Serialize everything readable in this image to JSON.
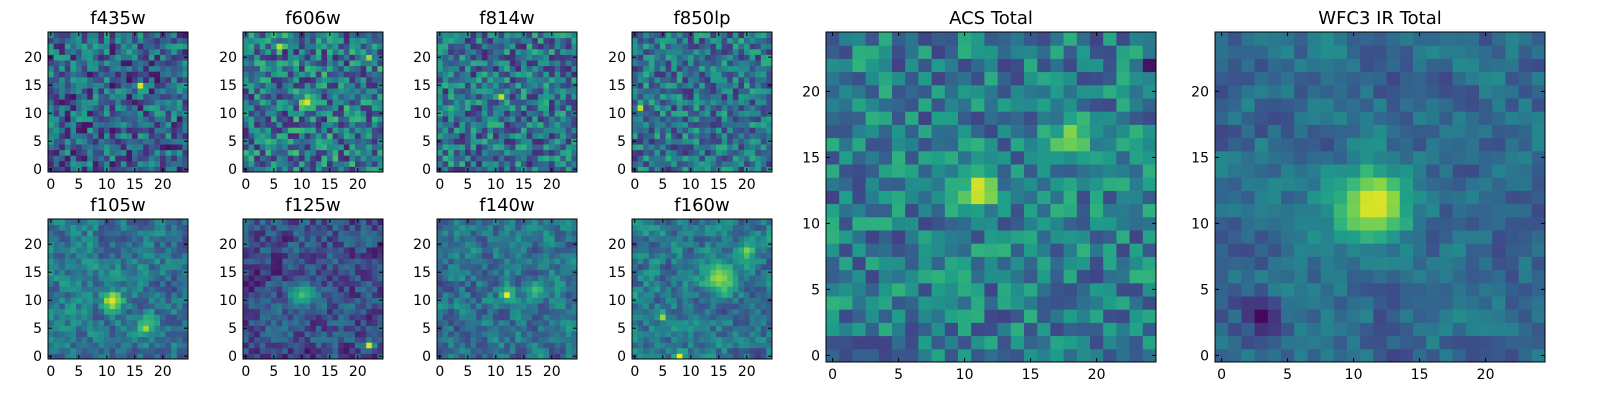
{
  "chart_data": [
    {
      "type": "heatmap",
      "title": "f435w",
      "xticks": [
        "0",
        "5",
        "10",
        "15",
        "20"
      ],
      "yticks": [
        "0",
        "5",
        "10",
        "15",
        "20"
      ],
      "xlim": [
        -0.5,
        24.5
      ],
      "ylim": [
        -0.5,
        24.5
      ],
      "grid_size": [
        25,
        25
      ],
      "colormap": "viridis",
      "seed": 11,
      "base": 0.32,
      "noise": 0.55,
      "smooth": 0,
      "peaks": [
        {
          "x": 16,
          "y": 15,
          "value": 0.95,
          "width": 0.6
        }
      ]
    },
    {
      "type": "heatmap",
      "title": "f606w",
      "xticks": [
        "0",
        "5",
        "10",
        "15",
        "20"
      ],
      "yticks": [
        "0",
        "5",
        "10",
        "15",
        "20"
      ],
      "xlim": [
        -0.5,
        24.5
      ],
      "ylim": [
        -0.5,
        24.5
      ],
      "grid_size": [
        25,
        25
      ],
      "colormap": "viridis",
      "seed": 23,
      "base": 0.4,
      "noise": 0.6,
      "smooth": 0,
      "peaks": [
        {
          "x": 11,
          "y": 12,
          "value": 0.95,
          "width": 1.0
        },
        {
          "x": 6,
          "y": 22,
          "value": 0.9,
          "width": 0.4
        },
        {
          "x": 22,
          "y": 20,
          "value": 0.85,
          "width": 0.4
        }
      ]
    },
    {
      "type": "heatmap",
      "title": "f814w",
      "xticks": [
        "0",
        "5",
        "10",
        "15",
        "20"
      ],
      "yticks": [
        "0",
        "5",
        "10",
        "15",
        "20"
      ],
      "xlim": [
        -0.5,
        24.5
      ],
      "ylim": [
        -0.5,
        24.5
      ],
      "grid_size": [
        25,
        25
      ],
      "colormap": "viridis",
      "seed": 37,
      "base": 0.38,
      "noise": 0.55,
      "smooth": 0,
      "peaks": [
        {
          "x": 11,
          "y": 13,
          "value": 0.9,
          "width": 0.5
        }
      ]
    },
    {
      "type": "heatmap",
      "title": "f850lp",
      "xticks": [
        "0",
        "5",
        "10",
        "15",
        "20"
      ],
      "yticks": [
        "0",
        "5",
        "10",
        "15",
        "20"
      ],
      "xlim": [
        -0.5,
        24.5
      ],
      "ylim": [
        -0.5,
        24.5
      ],
      "grid_size": [
        25,
        25
      ],
      "colormap": "viridis",
      "seed": 41,
      "base": 0.38,
      "noise": 0.5,
      "smooth": 0,
      "peaks": [
        {
          "x": 1,
          "y": 11,
          "value": 0.9,
          "width": 0.4
        }
      ]
    },
    {
      "type": "heatmap",
      "title": "f105w",
      "xticks": [
        "0",
        "5",
        "10",
        "15",
        "20"
      ],
      "yticks": [
        "0",
        "5",
        "10",
        "15",
        "20"
      ],
      "xlim": [
        -0.5,
        24.5
      ],
      "ylim": [
        -0.5,
        24.5
      ],
      "grid_size": [
        25,
        25
      ],
      "colormap": "viridis",
      "seed": 53,
      "base": 0.4,
      "noise": 0.55,
      "smooth": 1,
      "peaks": [
        {
          "x": 11,
          "y": 10,
          "value": 0.95,
          "width": 1.2
        },
        {
          "x": 17,
          "y": 5,
          "value": 0.85,
          "width": 0.8
        }
      ]
    },
    {
      "type": "heatmap",
      "title": "f125w",
      "xticks": [
        "0",
        "5",
        "10",
        "15",
        "20"
      ],
      "yticks": [
        "0",
        "5",
        "10",
        "15",
        "20"
      ],
      "xlim": [
        -0.5,
        24.5
      ],
      "ylim": [
        -0.5,
        24.5
      ],
      "grid_size": [
        25,
        25
      ],
      "colormap": "viridis",
      "seed": 67,
      "base": 0.25,
      "noise": 0.55,
      "smooth": 1,
      "peaks": [
        {
          "x": 22,
          "y": 2,
          "value": 0.95,
          "width": 0.6
        },
        {
          "x": 10,
          "y": 11,
          "value": 0.7,
          "width": 1.5
        }
      ]
    },
    {
      "type": "heatmap",
      "title": "f140w",
      "xticks": [
        "0",
        "5",
        "10",
        "15",
        "20"
      ],
      "yticks": [
        "0",
        "5",
        "10",
        "15",
        "20"
      ],
      "xlim": [
        -0.5,
        24.5
      ],
      "ylim": [
        -0.5,
        24.5
      ],
      "grid_size": [
        25,
        25
      ],
      "colormap": "viridis",
      "seed": 79,
      "base": 0.38,
      "noise": 0.55,
      "smooth": 1,
      "peaks": [
        {
          "x": 12,
          "y": 11,
          "value": 0.98,
          "width": 0.8
        },
        {
          "x": 17,
          "y": 12,
          "value": 0.7,
          "width": 1.2
        }
      ]
    },
    {
      "type": "heatmap",
      "title": "f160w",
      "xticks": [
        "0",
        "5",
        "10",
        "15",
        "20"
      ],
      "yticks": [
        "0",
        "5",
        "10",
        "15",
        "20"
      ],
      "xlim": [
        -0.5,
        24.5
      ],
      "ylim": [
        -0.5,
        24.5
      ],
      "grid_size": [
        25,
        25
      ],
      "colormap": "viridis",
      "seed": 83,
      "base": 0.4,
      "noise": 0.55,
      "smooth": 1,
      "peaks": [
        {
          "x": 8,
          "y": 0,
          "value": 0.98,
          "width": 0.6
        },
        {
          "x": 15,
          "y": 14,
          "value": 0.85,
          "width": 2.0
        },
        {
          "x": 5,
          "y": 7,
          "value": 0.85,
          "width": 0.5
        },
        {
          "x": 20,
          "y": 19,
          "value": 0.8,
          "width": 1.0
        }
      ]
    },
    {
      "type": "heatmap",
      "title": "ACS Total",
      "xticks": [
        "0",
        "5",
        "10",
        "15",
        "20"
      ],
      "yticks": [
        "0",
        "5",
        "10",
        "15",
        "20"
      ],
      "xlim": [
        -0.5,
        24.5
      ],
      "ylim": [
        -0.5,
        24.5
      ],
      "grid_size": [
        25,
        25
      ],
      "colormap": "viridis",
      "seed": 97,
      "base": 0.42,
      "noise": 0.45,
      "smooth": 0,
      "peaks": [
        {
          "x": 11,
          "y": 12.5,
          "value": 0.98,
          "width": 1.0
        },
        {
          "x": 18,
          "y": 16.5,
          "value": 0.85,
          "width": 1.0
        },
        {
          "x": 24,
          "y": 22,
          "value": 0.05,
          "width": 0.4
        }
      ]
    },
    {
      "type": "heatmap",
      "title": "WFC3 IR Total",
      "xticks": [
        "0",
        "5",
        "10",
        "15",
        "20"
      ],
      "yticks": [
        "0",
        "5",
        "10",
        "15",
        "20"
      ],
      "xlim": [
        -0.5,
        24.5
      ],
      "ylim": [
        -0.5,
        24.5
      ],
      "grid_size": [
        25,
        25
      ],
      "colormap": "viridis",
      "seed": 101,
      "base": 0.35,
      "noise": 0.4,
      "smooth": 1,
      "peaks": [
        {
          "x": 11.5,
          "y": 11.5,
          "value": 0.98,
          "width": 2.0
        },
        {
          "x": 3,
          "y": 3,
          "value": 0.02,
          "width": 1.0
        }
      ]
    }
  ]
}
